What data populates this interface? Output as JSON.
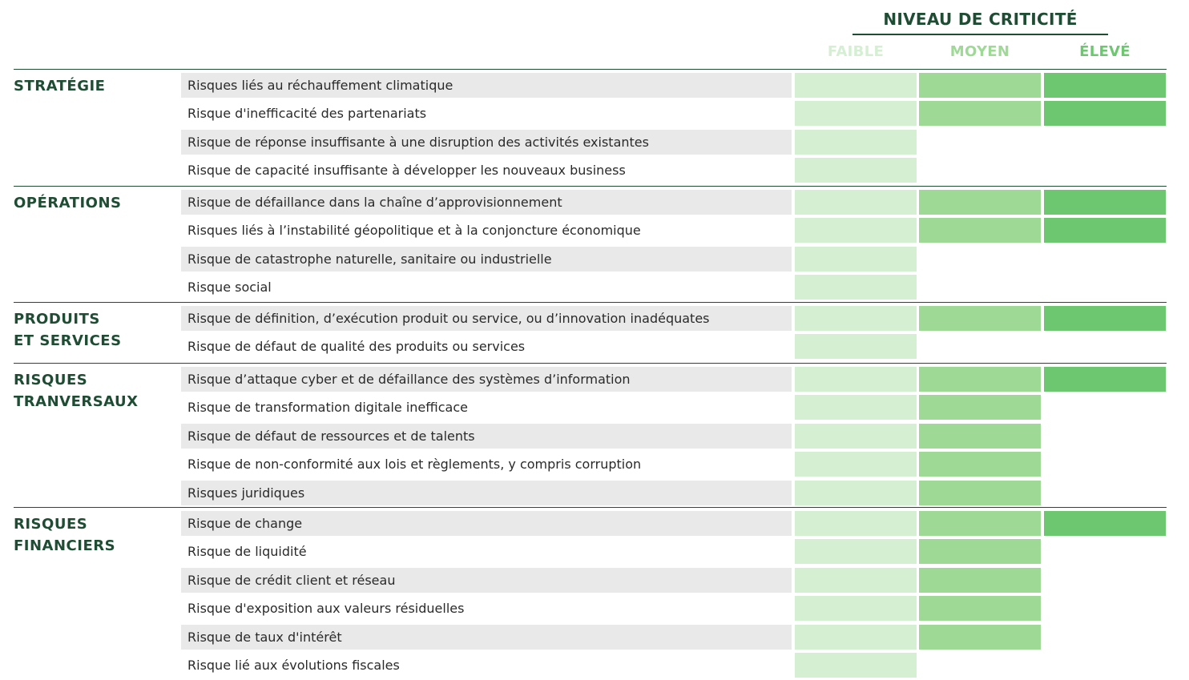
{
  "header": {
    "title": "NIVEAU DE CRITICITÉ",
    "levels": [
      "FAIBLE",
      "MOYEN",
      "ÉLEVÉ"
    ]
  },
  "colors": {
    "faible": "#d4efd1",
    "moyen": "#9fd996",
    "eleve": "#6dc771",
    "heading": "#1f4d34",
    "row_shade": "#e9e9e9"
  },
  "sections": [
    {
      "name_lines": [
        "STRATÉGIE"
      ],
      "risks": [
        {
          "label": "Risques liés au réchauffement climatique",
          "level": 3
        },
        {
          "label": "Risque d'inefficacité des partenariats",
          "level": 3
        },
        {
          "label": "Risque de réponse insuffisante à une disruption des activités existantes",
          "level": 1
        },
        {
          "label": "Risque de capacité insuffisante à développer les nouveaux business",
          "level": 1
        }
      ]
    },
    {
      "name_lines": [
        "OPÉRATIONS"
      ],
      "risks": [
        {
          "label": "Risque de défaillance dans la chaîne d’approvisionnement",
          "level": 3
        },
        {
          "label": "Risques liés à l’instabilité géopolitique et à la conjoncture économique",
          "level": 3
        },
        {
          "label": "Risque de catastrophe naturelle, sanitaire ou industrielle",
          "level": 1
        },
        {
          "label": "Risque social",
          "level": 1
        }
      ]
    },
    {
      "name_lines": [
        "PRODUITS",
        "ET SERVICES"
      ],
      "risks": [
        {
          "label": "Risque de définition, d’exécution produit ou service, ou d’innovation inadéquates",
          "level": 3
        },
        {
          "label": "Risque de défaut de qualité des produits ou services",
          "level": 1
        }
      ]
    },
    {
      "name_lines": [
        "RISQUES",
        "TRANVERSAUX"
      ],
      "risks": [
        {
          "label": "Risque d’attaque cyber et de défaillance des systèmes d’information",
          "level": 3
        },
        {
          "label": "Risque de transformation digitale inefficace",
          "level": 2
        },
        {
          "label": "Risque de défaut de ressources et de talents",
          "level": 2
        },
        {
          "label": "Risque de non-conformité aux lois et règlements, y compris corruption",
          "level": 2
        },
        {
          "label": "Risques juridiques",
          "level": 2
        }
      ]
    },
    {
      "name_lines": [
        "RISQUES",
        "FINANCIERS"
      ],
      "risks": [
        {
          "label": "Risque de change",
          "level": 3
        },
        {
          "label": "Risque de liquidité",
          "level": 2
        },
        {
          "label": "Risque de crédit client et réseau",
          "level": 2
        },
        {
          "label": "Risque d'exposition aux valeurs résiduelles",
          "level": 2
        },
        {
          "label": "Risque de taux d'intérêt",
          "level": 2
        },
        {
          "label": "Risque lié aux évolutions fiscales",
          "level": 1
        }
      ]
    }
  ]
}
